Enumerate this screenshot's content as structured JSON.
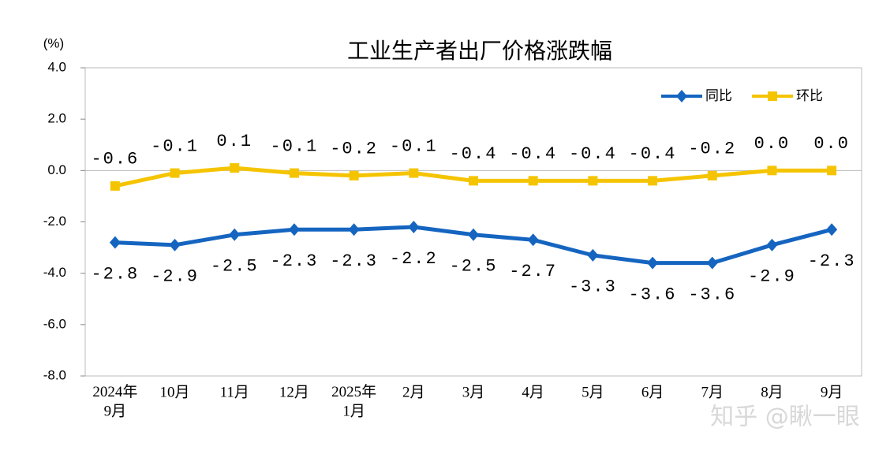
{
  "chart_data": {
    "type": "line",
    "title": "工业生产者出厂价格涨跌幅",
    "y_label": "(%)",
    "watermark": "知乎 @瞅一眼",
    "categories": [
      "2024年\n9月",
      "10月",
      "11月",
      "12月",
      "2025年\n1月",
      "2月",
      "3月",
      "4月",
      "5月",
      "6月",
      "7月",
      "8月",
      "9月"
    ],
    "series": [
      {
        "name": "同比",
        "color": "#1565c0",
        "marker": "diamond",
        "label_pos": "below",
        "values": [
          -2.8,
          -2.9,
          -2.5,
          -2.3,
          -2.3,
          -2.2,
          -2.5,
          -2.7,
          -3.3,
          -3.6,
          -3.6,
          -2.9,
          -2.3
        ]
      },
      {
        "name": "环比",
        "color": "#f5c400",
        "marker": "square",
        "label_pos": "above",
        "values": [
          -0.6,
          -0.1,
          0.1,
          -0.1,
          -0.2,
          -0.1,
          -0.4,
          -0.4,
          -0.4,
          -0.4,
          -0.2,
          0,
          0
        ],
        "value_labels": [
          "-0.6",
          "-0.1",
          "0.1",
          "-0.1",
          "-0.2",
          "-0.1",
          "-0.4",
          "-0.4",
          "-0.4",
          "-0.4",
          "-0.2",
          "0.0",
          "0.0"
        ]
      }
    ],
    "ylim": [
      -8,
      4
    ],
    "yticks": [
      {
        "value": 4,
        "label": "4.0"
      },
      {
        "value": 2,
        "label": "2.0"
      },
      {
        "value": 0,
        "label": "0.0"
      },
      {
        "value": -2,
        "label": "-2.0"
      },
      {
        "value": -4,
        "label": "-4.0"
      },
      {
        "value": -6,
        "label": "-6.0"
      },
      {
        "value": -8,
        "label": "-8.0"
      }
    ],
    "grid": false,
    "legend": "upper right"
  }
}
